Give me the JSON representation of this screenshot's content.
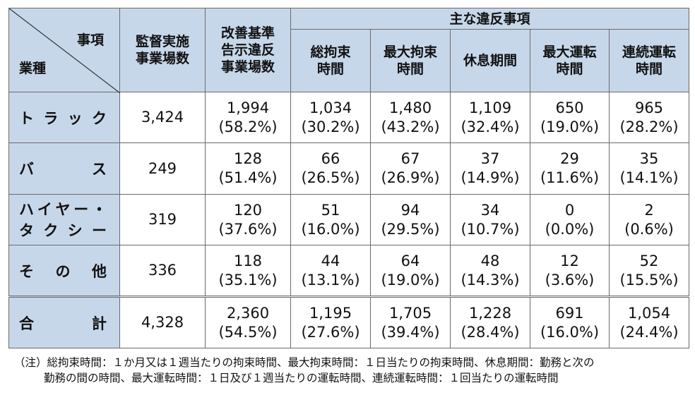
{
  "header": {
    "corner_top": "事項",
    "corner_bottom": "業種",
    "col_supervised": [
      "監督実施",
      "事業場数"
    ],
    "col_violation": [
      "改善基準",
      "告示違反",
      "事業場数"
    ],
    "group_label": "主な違反事項",
    "sub_cols": [
      [
        "総拘束",
        "時間"
      ],
      [
        "最大拘束",
        "時間"
      ],
      [
        "休息期間"
      ],
      [
        "最大運転",
        "時間"
      ],
      [
        "連続運転",
        "時間"
      ]
    ]
  },
  "rows": [
    {
      "label_chars": [
        "ト",
        "ラ",
        "ッ",
        "ク"
      ],
      "supervised": "3,424",
      "violation": [
        "1,994",
        "(58.2%)"
      ],
      "items": [
        [
          "1,034",
          "(30.2%)"
        ],
        [
          "1,480",
          "(43.2%)"
        ],
        [
          "1,109",
          "(32.4%)"
        ],
        [
          "650",
          "(19.0%)"
        ],
        [
          "965",
          "(28.2%)"
        ]
      ]
    },
    {
      "label_chars": [
        "バ",
        "ス"
      ],
      "supervised": "249",
      "violation": [
        "128",
        "(51.4%)"
      ],
      "items": [
        [
          "66",
          "(26.5%)"
        ],
        [
          "67",
          "(26.9%)"
        ],
        [
          "37",
          "(14.9%)"
        ],
        [
          "29",
          "(11.6%)"
        ],
        [
          "35",
          "(14.1%)"
        ]
      ]
    },
    {
      "label_lines": [
        [
          "ハ",
          "イ",
          "ヤ",
          "ー",
          "・"
        ],
        [
          "タ",
          "ク",
          "シ",
          "ー"
        ]
      ],
      "supervised": "319",
      "violation": [
        "120",
        "(37.6%)"
      ],
      "items": [
        [
          "51",
          "(16.0%)"
        ],
        [
          "94",
          "(29.5%)"
        ],
        [
          "34",
          "(10.7%)"
        ],
        [
          "0",
          "(0.0%)"
        ],
        [
          "2",
          "(0.6%)"
        ]
      ]
    },
    {
      "label_chars": [
        "そ",
        "の",
        "他"
      ],
      "supervised": "336",
      "violation": [
        "118",
        "(35.1%)"
      ],
      "items": [
        [
          "44",
          "(13.1%)"
        ],
        [
          "64",
          "(19.0%)"
        ],
        [
          "48",
          "(14.3%)"
        ],
        [
          "12",
          "(3.6%)"
        ],
        [
          "52",
          "(15.5%)"
        ]
      ]
    },
    {
      "label_chars": [
        "合",
        "計"
      ],
      "supervised": "4,328",
      "violation": [
        "2,360",
        "(54.5%)"
      ],
      "items": [
        [
          "1,195",
          "(27.6%)"
        ],
        [
          "1,705",
          "(39.4%)"
        ],
        [
          "1,228",
          "(28.4%)"
        ],
        [
          "691",
          "(16.0%)"
        ],
        [
          "1,054",
          "(24.4%)"
        ]
      ]
    }
  ],
  "note": {
    "line1": "（注）総拘束時間：１か月又は１週当たりの拘束時間、最大拘束時間：１日当たりの拘束時間、休息期間：勤務と次の",
    "line2": "勤務の間の時間、最大運転時間：１日及び１週当たりの運転時間、連続運転時間：１回当たりの運転時間"
  },
  "colors": {
    "header_bg": "#c7d7ea",
    "border": "#6a6a6a"
  }
}
